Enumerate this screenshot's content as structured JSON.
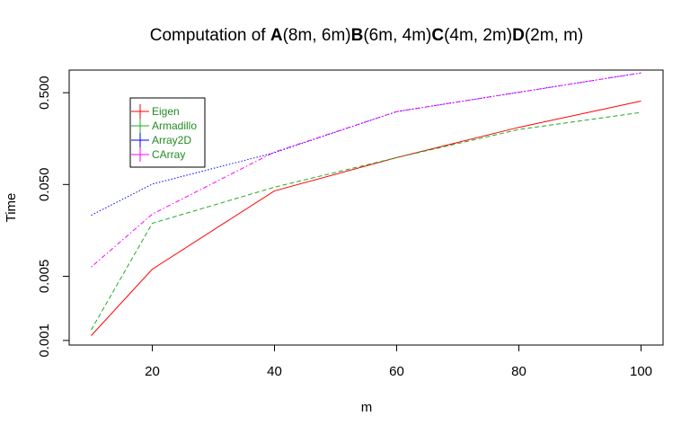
{
  "chart_data": {
    "type": "line",
    "title_parts": [
      {
        "text": "Computation of ",
        "bold": false
      },
      {
        "text": "A",
        "bold": true
      },
      {
        "text": "(8m, 6m)",
        "bold": false
      },
      {
        "text": "B",
        "bold": true
      },
      {
        "text": "(6m, 4m)",
        "bold": false
      },
      {
        "text": "C",
        "bold": true
      },
      {
        "text": "(4m, 2m)",
        "bold": false
      },
      {
        "text": "D",
        "bold": true
      },
      {
        "text": "(2m, m)",
        "bold": false
      }
    ],
    "xlabel": "m",
    "ylabel": "Time",
    "x": [
      10,
      20,
      40,
      60,
      80,
      100
    ],
    "xlim": [
      6.4,
      103.6
    ],
    "ylim": [
      0.000891,
      0.882
    ],
    "y_scale": "log",
    "x_ticks": [
      20,
      40,
      60,
      80,
      100
    ],
    "x_tick_labels": [
      "20",
      "40",
      "60",
      "80",
      "100"
    ],
    "y_ticks": [
      0.001,
      0.005,
      0.05,
      0.5
    ],
    "y_tick_labels": [
      "0.001",
      "0.005",
      "0.050",
      "0.500"
    ],
    "legend_position": "top-left",
    "series": [
      {
        "name": "Eigen",
        "color": "#ff0000",
        "dash": "solid",
        "values": [
          0.00113,
          0.00597,
          0.0426,
          0.0982,
          0.21,
          0.405
        ]
      },
      {
        "name": "Armadillo",
        "color": "#22aa22",
        "dash": "dashed",
        "values": [
          0.0013,
          0.0189,
          0.0468,
          0.0982,
          0.199,
          0.305
        ]
      },
      {
        "name": "Array2D",
        "color": "#0000ff",
        "dash": "dotted",
        "values": [
          0.0231,
          0.0505,
          0.111,
          0.311,
          0.505,
          0.822
        ]
      },
      {
        "name": "CArray",
        "color": "#ff00ff",
        "dash": "dotdash",
        "values": [
          0.00631,
          0.0238,
          0.113,
          0.311,
          0.505,
          0.822
        ]
      }
    ]
  }
}
